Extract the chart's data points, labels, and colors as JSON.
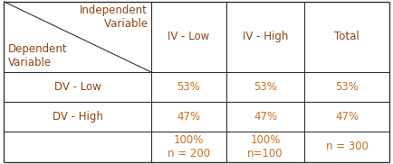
{
  "header_color": "#8B4513",
  "text_color": "#C87020",
  "border_color": "#333333",
  "bg_color": "#ffffff",
  "col_headers": [
    "IV - Low",
    "IV - High",
    "Total"
  ],
  "row_headers": [
    "DV - Low",
    "DV - High"
  ],
  "diagonal_label_top": "Independent\n        Variable",
  "diagonal_label_bottom": "Dependent\nVariable",
  "data": [
    [
      "53%",
      "53%",
      "53%"
    ],
    [
      "47%",
      "47%",
      "47%"
    ]
  ],
  "footer_col1": "100%\nn = 200",
  "footer_col2": "100%\nn=100",
  "footer_col3": "n = 300",
  "font_size": 8.5,
  "font_size_header": 8.5
}
